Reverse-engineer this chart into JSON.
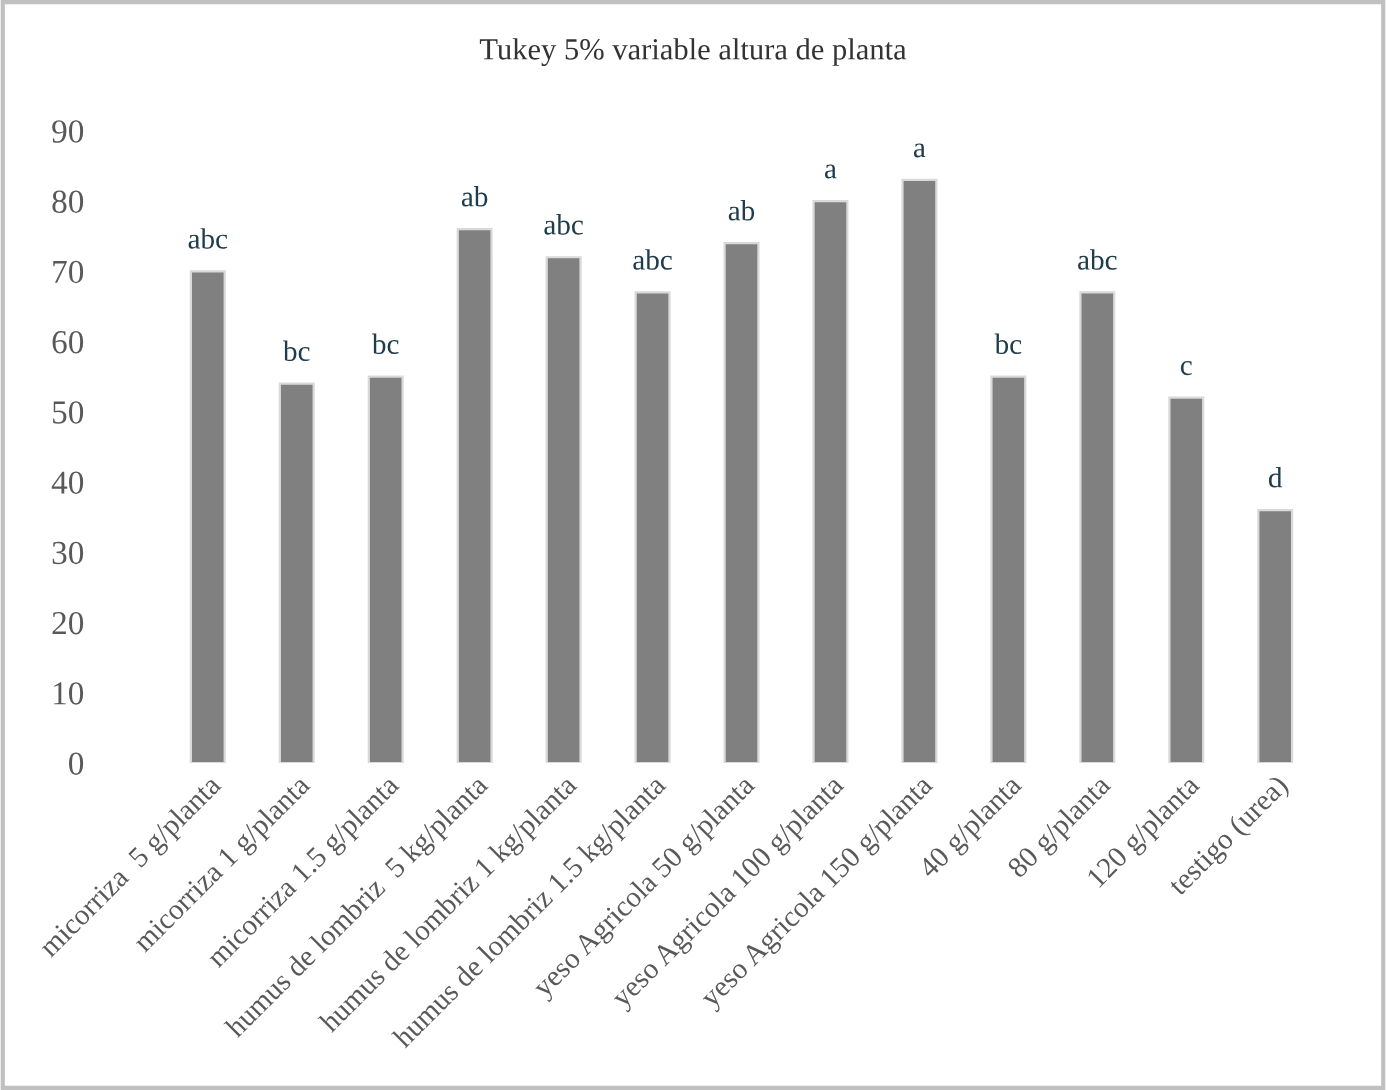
{
  "chart_data": {
    "type": "bar",
    "title": "Tukey 5% variable altura de planta",
    "categories": [
      "micorriza  5 g/planta",
      "micorriza 1 g/planta",
      "micorriza 1.5 g/planta",
      "humus de lombriz  5 kg/planta",
      "humus de lombriz 1 kg/planta",
      "humus de lombriz 1.5 kg/planta",
      "yeso Agricola 50 g/planta",
      "yeso Agricola 100 g/planta",
      "yeso Agricola 150 g/planta",
      "40 g/planta",
      "80 g/planta",
      "120 g/planta",
      "testigo (urea)"
    ],
    "values": [
      70,
      54,
      55,
      76,
      72,
      67,
      74,
      80,
      83,
      55,
      67,
      52,
      36
    ],
    "color": "#808080",
    "ylim": [
      0,
      90
    ],
    "yticks": [
      0,
      10,
      20,
      30,
      40,
      50,
      60,
      70,
      80,
      90
    ],
    "grid": false,
    "annotations": [
      {
        "text": "abc",
        "x": "micorriza  5 g/planta",
        "y": 70
      },
      {
        "text": "bc",
        "x": "micorriza 1 g/planta",
        "y": 54
      },
      {
        "text": "bc",
        "x": "micorriza 1.5 g/planta",
        "y": 55
      },
      {
        "text": "ab",
        "x": "humus de lombriz  5 kg/planta",
        "y": 76
      },
      {
        "text": "abc",
        "x": "humus de lombriz 1 kg/planta",
        "y": 72
      },
      {
        "text": "abc",
        "x": "humus de lombriz 1.5 kg/planta",
        "y": 67
      },
      {
        "text": "ab",
        "x": "yeso Agricola 50 g/planta",
        "y": 74
      },
      {
        "text": "a",
        "x": "yeso Agricola 100 g/planta",
        "y": 80
      },
      {
        "text": "a",
        "x": "yeso Agricola 150 g/planta",
        "y": 83
      },
      {
        "text": "bc",
        "x": "40 g/planta",
        "y": 55
      },
      {
        "text": "abc",
        "x": "80 g/planta",
        "y": 67
      },
      {
        "text": "c",
        "x": "120 g/planta",
        "y": 52
      },
      {
        "text": "d",
        "x": "testigo (urea)",
        "y": 36
      }
    ]
  }
}
